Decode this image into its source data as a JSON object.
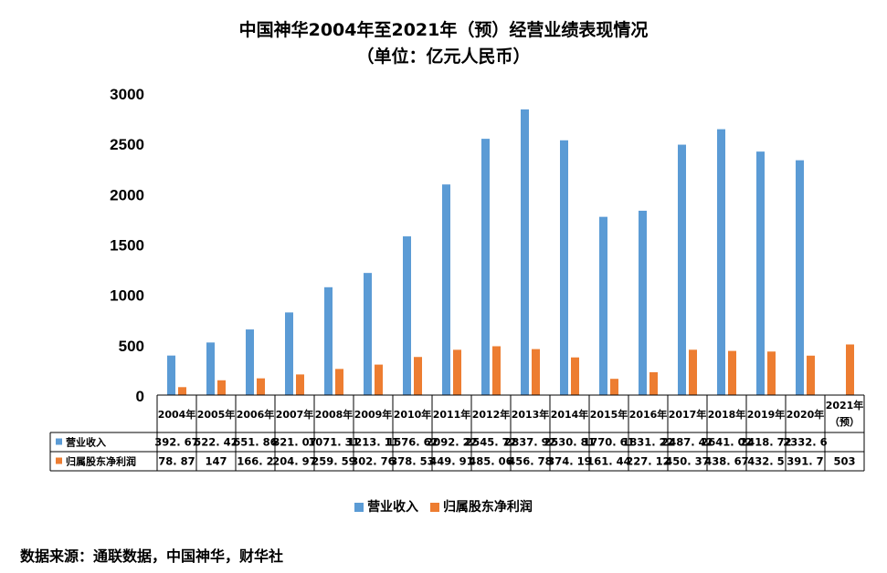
{
  "title_line1": "中国神华2004年至2021年（预）经营业绩表现情况",
  "title_line2": "（单位：亿元人民币）",
  "source": "数据来源：通联数据，中国神华，财华社",
  "colors": {
    "revenue": "#5B9BD5",
    "profit": "#ED7D31",
    "grid": "#000000"
  },
  "chart_data": {
    "type": "bar",
    "categories": [
      "2004年",
      "2005年",
      "2006年",
      "2007年",
      "2008年",
      "2009年",
      "2010年",
      "2011年",
      "2012年",
      "2013年",
      "2014年",
      "2015年",
      "2016年",
      "2017年",
      "2018年",
      "2019年",
      "2020年",
      "2021年（预）"
    ],
    "series": [
      {
        "name": "营业收入",
        "values": [
          392.67,
          522.42,
          651.86,
          821.07,
          1071.31,
          1213.11,
          1576.62,
          2092.22,
          2545.72,
          2837.92,
          2530.81,
          1770.61,
          1831.22,
          2487.42,
          2641.02,
          2418.72,
          2332.6,
          null
        ],
        "labels": [
          "392. 67",
          "522. 42",
          "651. 86",
          "821. 07",
          "1071. 31",
          "1213. 11",
          "1576. 62",
          "2092. 22",
          "2545. 72",
          "2837. 92",
          "2530. 81",
          "1770. 61",
          "1831. 22",
          "2487. 42",
          "2641. 02",
          "2418. 72",
          "2332. 6",
          ""
        ]
      },
      {
        "name": "归属股东净利润",
        "values": [
          78.87,
          147,
          166.2,
          204.97,
          259.59,
          302.76,
          378.53,
          449.91,
          485.06,
          456.78,
          374.19,
          161.44,
          227.12,
          450.37,
          438.67,
          432.5,
          391.7,
          503
        ],
        "labels": [
          "78. 87",
          "147",
          "166. 2",
          "204. 97",
          "259. 59",
          "302. 76",
          "378. 53",
          "449. 91",
          "485. 06",
          "456. 78",
          "374. 19",
          "161. 44",
          "227. 12",
          "450. 37",
          "438. 67",
          "432. 5",
          "391. 7",
          "503"
        ]
      }
    ],
    "yticks": [
      0,
      500,
      1000,
      1500,
      2000,
      2500,
      3000
    ],
    "ylim": [
      0,
      3000
    ],
    "legend_position": "bottom",
    "grid": false
  }
}
